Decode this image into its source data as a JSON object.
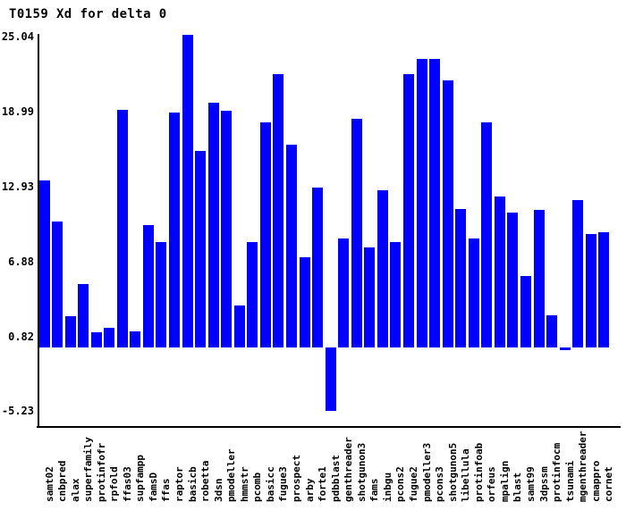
{
  "title": "T0159 Xd for delta 0",
  "chart_data": {
    "type": "bar",
    "title": "T0159 Xd for delta 0",
    "xlabel": "",
    "ylabel": "",
    "ylim": [
      -5.23,
      25.04
    ],
    "ytick_labels": [
      "25.04",
      "18.99",
      "12.93",
      "6.88",
      "0.82",
      "-5.23"
    ],
    "yticks": [
      25.04,
      18.99,
      12.93,
      6.88,
      0.82,
      -5.23
    ],
    "grid": "off",
    "legend": "none",
    "bar_color": "#0000ff",
    "axis_color": "#000000",
    "background_color": "#ffffff",
    "categories": [
      "samt02",
      "cnbpred",
      "alax",
      "superfamily",
      "protinfofr",
      "rpfold",
      "ffas03",
      "supfampp",
      "famsD",
      "ffas",
      "raptor",
      "basicb",
      "robetta",
      "3dsn",
      "pmodeller",
      "hmmstr",
      "pcomb",
      "basicc",
      "fugue3",
      "prospect",
      "arby",
      "forte1",
      "pdbblast",
      "genthreader",
      "shotgunon3",
      "fams",
      "inbgu",
      "pcons2",
      "fugue2",
      "pmodeller3",
      "pcons3",
      "shotgunon5",
      "libellula",
      "protinfoab",
      "orfeus",
      "mpalign",
      "blast",
      "samt99",
      "3dpssm",
      "protinfocm",
      "tsunami",
      "mgenthreader",
      "cmappro",
      "cornet"
    ],
    "values": [
      13.5,
      10.2,
      2.5,
      5.1,
      1.2,
      1.6,
      19.2,
      1.3,
      9.9,
      8.5,
      19.0,
      25.3,
      15.9,
      19.8,
      19.1,
      3.4,
      8.5,
      18.2,
      22.1,
      16.4,
      7.3,
      12.9,
      -5.1,
      8.8,
      18.5,
      8.1,
      12.7,
      8.5,
      22.1,
      23.3,
      23.3,
      21.6,
      11.2,
      8.8,
      18.2,
      12.2,
      10.9,
      5.8,
      11.1,
      2.6,
      -0.2,
      11.9,
      9.2,
      9.3
    ]
  }
}
